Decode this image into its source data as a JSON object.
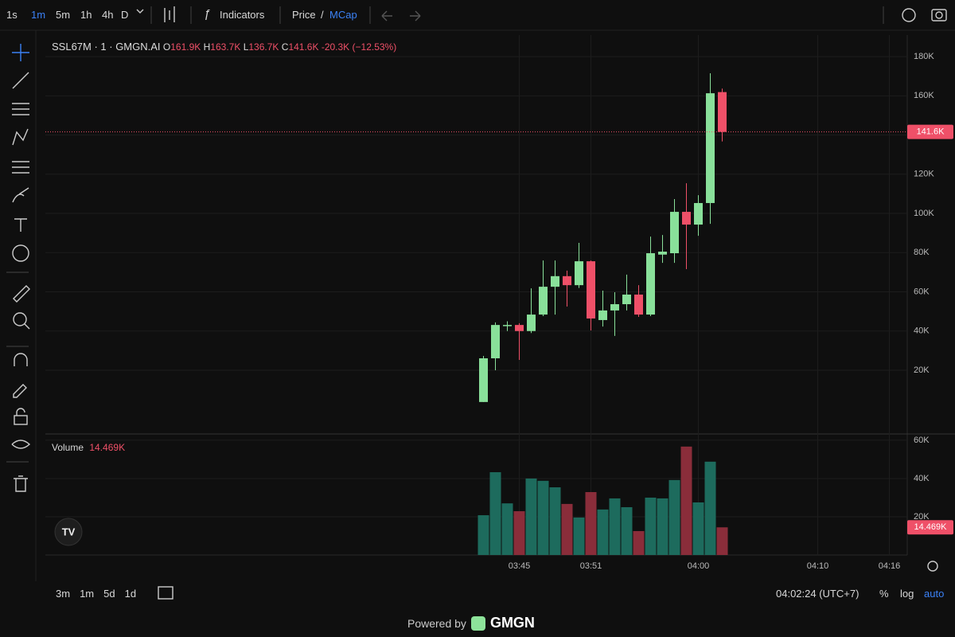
{
  "toolbar": {
    "intervals": [
      "1s",
      "1m",
      "5m",
      "1h",
      "4h",
      "D"
    ],
    "indicators": "Indicators",
    "price": "Price",
    "slash": "/",
    "mcap": "MCap"
  },
  "legend": {
    "symbol": "SSL67M · 1 · GMGN.AI",
    "o_label": "O",
    "o": "161.9K",
    "h_label": "H",
    "h": "163.7K",
    "l_label": "L",
    "l": "136.7K",
    "c_label": "C",
    "c": "141.6K",
    "change": "-20.3K (−12.53%)"
  },
  "volume_legend": {
    "label": "Volume",
    "value": "14.469K"
  },
  "price_tag": "141.6K",
  "volume_tag": "14.469K",
  "bottom": {
    "ranges": [
      "3m",
      "1m",
      "5d",
      "1d"
    ],
    "time": "04:02:24 (UTC+7)",
    "percent": "%",
    "log": "log",
    "auto": "auto"
  },
  "footer": {
    "powered": "Powered by",
    "brand": "GMGN"
  },
  "chart_data": [
    {
      "type": "candlestick",
      "up_color": "#89e09a",
      "down_color": "#ef5068",
      "grid": true,
      "x": [
        0,
        1,
        2,
        3,
        4,
        5,
        6,
        7,
        8,
        9,
        10,
        11,
        12,
        13,
        14,
        15,
        16,
        17,
        18,
        19,
        20
      ],
      "open": [
        3.8,
        26.1,
        43.1,
        43.1,
        40,
        48.4,
        62.6,
        68,
        63.4,
        75.6,
        45.6,
        50.5,
        53.7,
        58.6,
        48.4,
        79,
        79.7,
        100.8,
        94.3,
        105.3,
        161.9
      ],
      "high": [
        27.3,
        44.4,
        45,
        44,
        61.8,
        76,
        76,
        70.8,
        85,
        76,
        60.6,
        59.8,
        68.8,
        63.4,
        88.2,
        89,
        107.3,
        115.4,
        109.3,
        171.5,
        163.7
      ],
      "low": [
        3.8,
        20,
        40,
        25.3,
        39,
        47.6,
        48.4,
        52.5,
        62,
        40.3,
        42.3,
        37.5,
        50.5,
        47.2,
        47.6,
        74.8,
        74.8,
        71.6,
        88.6,
        94.7,
        136.7
      ],
      "close": [
        26.1,
        43.1,
        43.1,
        40,
        48.4,
        62.6,
        68,
        63.4,
        75.6,
        46.4,
        50.5,
        53.7,
        58.6,
        48.4,
        79.7,
        80.5,
        100.8,
        94.3,
        105.3,
        161.3,
        141.6
      ],
      "xlim": [
        -36.7,
        35.5
      ],
      "xticks": [
        {
          "value": 3,
          "label": "03:45"
        },
        {
          "value": 9,
          "label": "03:51"
        },
        {
          "value": 18,
          "label": "04:00"
        },
        {
          "value": 28,
          "label": "04:10"
        },
        {
          "value": 34,
          "label": "04:16"
        }
      ],
      "ylim": [
        -12.5,
        191
      ],
      "yticks": [
        {
          "value": 20,
          "label": "20K"
        },
        {
          "value": 40,
          "label": "40K"
        },
        {
          "value": 60,
          "label": "60K"
        },
        {
          "value": 80,
          "label": "80K"
        },
        {
          "value": 100,
          "label": "100K"
        },
        {
          "value": 120,
          "label": "120K"
        },
        {
          "value": 140,
          "label": "140K"
        },
        {
          "value": 160,
          "label": "160K"
        },
        {
          "value": 180,
          "label": "180K"
        }
      ]
    },
    {
      "type": "bar",
      "name": "Volume",
      "up_color": "#1d6b5d",
      "down_color": "#8a2d3a",
      "x": [
        0,
        1,
        2,
        3,
        4,
        5,
        6,
        7,
        8,
        9,
        10,
        11,
        12,
        13,
        14,
        15,
        16,
        17,
        18,
        19,
        20
      ],
      "values": [
        20.8,
        43.3,
        27,
        22.9,
        40,
        38.8,
        35.4,
        26.7,
        19.6,
        32.9,
        23.8,
        29.6,
        25,
        12.5,
        30,
        29.6,
        39.2,
        56.7,
        27.5,
        48.8,
        14.469
      ],
      "ylim": [
        0,
        63.3
      ],
      "yticks": [
        {
          "value": 20,
          "label": "20K"
        },
        {
          "value": 40,
          "label": "40K"
        },
        {
          "value": 60,
          "label": "60K"
        }
      ]
    }
  ]
}
